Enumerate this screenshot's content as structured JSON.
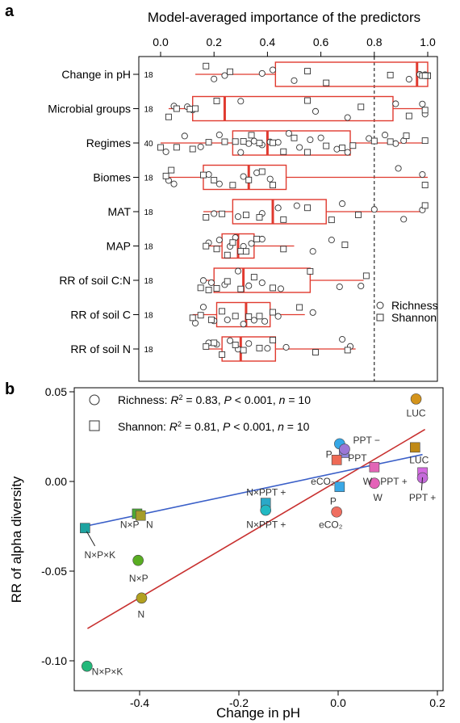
{
  "chart_data": [
    {
      "type": "box",
      "panel": "a",
      "title": "Model-averaged importance of the predictors",
      "xlim": [
        0,
        1
      ],
      "xticks": [
        0.0,
        0.2,
        0.4,
        0.6,
        0.8,
        1.0
      ],
      "xtick_labels": [
        "0.0",
        "0.2",
        "0.4",
        "0.6",
        "0.8",
        "1.0"
      ],
      "threshold": 0.8,
      "legend": [
        "Richness",
        "Shannon"
      ],
      "categories": [
        {
          "label": "Change in pH",
          "n": "18",
          "whisker": [
            0.13,
            1.0
          ],
          "q1": 0.43,
          "median": 0.96,
          "q3": 1.0,
          "circles": [
            0.2,
            0.24,
            0.38,
            0.42,
            0.5,
            0.93,
            0.97,
            0.99,
            0.99
          ],
          "squares": [
            0.17,
            0.26,
            0.55,
            0.62,
            0.86,
            0.98,
            1.0,
            1.0,
            0.99
          ]
        },
        {
          "label": "Microbial groups",
          "n": "18",
          "whisker": [
            0.03,
            1.0
          ],
          "q1": 0.12,
          "median": 0.24,
          "q3": 0.87,
          "whisker_hi_line": 0.96,
          "circles": [
            0.05,
            0.1,
            0.12,
            0.3,
            0.58,
            0.7,
            0.88,
            0.98,
            0.99
          ],
          "squares": [
            0.03,
            0.06,
            0.11,
            0.13,
            0.21,
            0.55,
            0.75,
            0.93,
            0.99
          ]
        },
        {
          "label": "Regimes",
          "n": "40",
          "whisker": [
            0.0,
            1.0
          ],
          "q1": 0.27,
          "median": 0.4,
          "q3": 0.71,
          "circles": [
            0.02,
            0.09,
            0.15,
            0.22,
            0.3,
            0.33,
            0.35,
            0.38,
            0.41,
            0.44,
            0.48,
            0.52,
            0.56,
            0.6,
            0.66,
            0.7,
            0.78,
            0.84,
            0.88,
            0.91
          ],
          "squares": [
            0.0,
            0.06,
            0.12,
            0.18,
            0.24,
            0.28,
            0.31,
            0.34,
            0.37,
            0.42,
            0.46,
            0.5,
            0.55,
            0.62,
            0.68,
            0.72,
            0.8,
            0.86,
            0.92,
            0.99
          ]
        },
        {
          "label": "Biomes",
          "n": "18",
          "whisker": [
            0.03,
            1.0
          ],
          "q1": 0.16,
          "median": 0.33,
          "q3": 0.47,
          "circles": [
            0.03,
            0.05,
            0.18,
            0.22,
            0.31,
            0.36,
            0.41,
            0.89,
            0.98
          ],
          "squares": [
            0.02,
            0.04,
            0.16,
            0.2,
            0.27,
            0.33,
            0.38,
            0.42,
            0.99
          ]
        },
        {
          "label": "MAT",
          "n": "18",
          "whisker": [
            0.16,
            0.98
          ],
          "q1": 0.27,
          "median": 0.42,
          "q3": 0.62,
          "circles": [
            0.2,
            0.29,
            0.38,
            0.44,
            0.51,
            0.68,
            0.8,
            0.91,
            0.98
          ],
          "squares": [
            0.17,
            0.23,
            0.32,
            0.37,
            0.46,
            0.55,
            0.64,
            0.74,
            0.99
          ]
        },
        {
          "label": "MAP",
          "n": "18",
          "whisker": [
            0.16,
            0.5
          ],
          "q1": 0.23,
          "median": 0.29,
          "q3": 0.35,
          "circles": [
            0.18,
            0.22,
            0.26,
            0.28,
            0.31,
            0.34,
            0.38,
            0.57,
            0.64
          ],
          "squares": [
            0.17,
            0.21,
            0.25,
            0.27,
            0.3,
            0.32,
            0.36,
            0.46,
            0.69
          ]
        },
        {
          "label": "RR of soil C:N",
          "n": "18",
          "whisker": [
            0.15,
            0.76
          ],
          "q1": 0.2,
          "median": 0.31,
          "q3": 0.56,
          "circles": [
            0.16,
            0.19,
            0.24,
            0.29,
            0.33,
            0.38,
            0.45,
            0.67,
            0.75
          ],
          "squares": [
            0.15,
            0.18,
            0.21,
            0.25,
            0.3,
            0.35,
            0.42,
            0.56,
            0.77
          ]
        },
        {
          "label": "RR of soil C",
          "n": "18",
          "whisker": [
            0.12,
            0.54
          ],
          "q1": 0.21,
          "median": 0.32,
          "q3": 0.41,
          "circles": [
            0.13,
            0.16,
            0.2,
            0.25,
            0.31,
            0.35,
            0.39,
            0.44,
            0.57
          ],
          "squares": [
            0.12,
            0.15,
            0.19,
            0.23,
            0.28,
            0.33,
            0.37,
            0.42,
            0.52
          ]
        },
        {
          "label": "RR of soil N",
          "n": "18",
          "whisker": [
            0.16,
            0.73
          ],
          "q1": 0.23,
          "median": 0.3,
          "q3": 0.43,
          "circles": [
            0.18,
            0.21,
            0.26,
            0.29,
            0.33,
            0.4,
            0.47,
            0.68,
            0.71
          ],
          "squares": [
            0.17,
            0.2,
            0.23,
            0.28,
            0.31,
            0.37,
            0.42,
            0.58,
            0.7
          ]
        }
      ]
    },
    {
      "type": "scatter",
      "panel": "b",
      "xlabel": "Change in pH",
      "ylabel": "RR of alpha diversity",
      "xlim": [
        -0.52,
        0.2
      ],
      "ylim": [
        -0.105,
        0.052
      ],
      "xticks": [
        -0.4,
        -0.2,
        0.0,
        0.2
      ],
      "xtick_labels": [
        "-0.4",
        "-0.2",
        "0.0",
        "0.2"
      ],
      "yticks": [
        -0.1,
        -0.05,
        0.0,
        0.05
      ],
      "ytick_labels": [
        "-0.10",
        "-0.05",
        "0.00",
        "0.05"
      ],
      "legend": [
        {
          "marker": "circle",
          "prefix": "Richness: ",
          "r2": "0.83",
          "p": "0.001",
          "n": "10"
        },
        {
          "marker": "square",
          "prefix": "Shannon: ",
          "r2": "0.81",
          "p": "0.001",
          "n": "10"
        }
      ],
      "fits": [
        {
          "name": "Richness",
          "color": "#c8302f",
          "x": [
            -0.505,
            0.175
          ],
          "y": [
            -0.082,
            0.029
          ]
        },
        {
          "name": "Shannon",
          "color": "#3a5fc8",
          "x": [
            -0.51,
            0.17
          ],
          "y": [
            -0.025,
            0.015
          ]
        }
      ],
      "richness": [
        {
          "label": "LUC",
          "x": 0.157,
          "y": 0.046,
          "color": "#d4941c"
        },
        {
          "label": "PPT −",
          "x": 0.003,
          "y": 0.021,
          "color": "#35a7e6"
        },
        {
          "label": "P",
          "x": 0.013,
          "y": 0.018,
          "color": "#9b77d6"
        },
        {
          "label": "PPT +",
          "x": 0.17,
          "y": 0.002,
          "color": "#c46ad9"
        },
        {
          "label": "W",
          "x": 0.073,
          "y": -0.001,
          "color": "#e462b8"
        },
        {
          "label": "eCO₂",
          "x": -0.003,
          "y": -0.017,
          "color": "#ef6e60"
        },
        {
          "label": "N×PPT +",
          "x": -0.146,
          "y": -0.016,
          "color": "#22b9c3"
        },
        {
          "label": "N×P",
          "x": -0.403,
          "y": -0.044,
          "color": "#59ad22"
        },
        {
          "label": "N",
          "x": -0.396,
          "y": -0.065,
          "color": "#b2a020"
        },
        {
          "label": "N×P×K",
          "x": -0.506,
          "y": -0.103,
          "color": "#23b87a"
        }
      ],
      "shannon": [
        {
          "label": "LUC",
          "x": 0.155,
          "y": 0.019,
          "color": "#c08a16"
        },
        {
          "label": "PPT",
          "x": 0.012,
          "y": 0.016,
          "color": "#8c86d8"
        },
        {
          "label": "P",
          "x": -0.003,
          "y": 0.012,
          "color": "#ee6a56"
        },
        {
          "label": "W",
          "x": 0.073,
          "y": 0.008,
          "color": "#e265b6"
        },
        {
          "label": "PPT +",
          "x": 0.17,
          "y": 0.005,
          "color": "#d46ae0"
        },
        {
          "label": "P",
          "x": 0.003,
          "y": -0.003,
          "color": "#3aa8e6"
        },
        {
          "label": "N×PPT +",
          "x": -0.146,
          "y": -0.012,
          "color": "#2aa8c8"
        },
        {
          "label": "N×P",
          "x": -0.405,
          "y": -0.018,
          "color": "#4daa35"
        },
        {
          "label": "N",
          "x": -0.398,
          "y": -0.019,
          "color": "#a59c2a"
        },
        {
          "label": "N×P×K",
          "x": -0.51,
          "y": -0.026,
          "color": "#1ea3a0"
        }
      ],
      "point_labels": [
        {
          "text": "LUC",
          "x": 0.157,
          "y": 0.038,
          "anchor": "middle"
        },
        {
          "text": "PPT −",
          "x": 0.03,
          "y": 0.023,
          "anchor": "start"
        },
        {
          "text": "PPT",
          "x": 0.02,
          "y": 0.013,
          "anchor": "start"
        },
        {
          "text": "P",
          "x": -0.025,
          "y": 0.015,
          "anchor": "start"
        },
        {
          "text": "LUC",
          "x": 0.163,
          "y": 0.012,
          "anchor": "middle"
        },
        {
          "text": "eCO₂",
          "x": -0.055,
          "y": 0.0,
          "anchor": "start"
        },
        {
          "text": "W",
          "x": 0.05,
          "y": 0.0,
          "anchor": "start"
        },
        {
          "text": "PPT +",
          "x": 0.085,
          "y": 0.0,
          "anchor": "start"
        },
        {
          "text": "W",
          "x": 0.08,
          "y": -0.009,
          "anchor": "middle"
        },
        {
          "text": "PPT +",
          "x": 0.17,
          "y": -0.009,
          "anchor": "middle"
        },
        {
          "text": "P",
          "x": -0.01,
          "y": -0.011,
          "anchor": "middle"
        },
        {
          "text": "eCO₂",
          "x": -0.015,
          "y": -0.024,
          "anchor": "middle"
        },
        {
          "text": "N×PPT +",
          "x": -0.145,
          "y": -0.006,
          "anchor": "middle"
        },
        {
          "text": "N×PPT +",
          "x": -0.145,
          "y": -0.024,
          "anchor": "middle"
        },
        {
          "text": "N×P",
          "x": -0.42,
          "y": -0.024,
          "anchor": "middle"
        },
        {
          "text": "N",
          "x": -0.38,
          "y": -0.024,
          "anchor": "middle"
        },
        {
          "text": "N×P×K",
          "x": -0.48,
          "y": -0.041,
          "anchor": "middle"
        },
        {
          "text": "N×P",
          "x": -0.402,
          "y": -0.054,
          "anchor": "middle"
        },
        {
          "text": "N",
          "x": -0.397,
          "y": -0.074,
          "anchor": "middle"
        },
        {
          "text": "N×P×K",
          "x": -0.465,
          "y": -0.106,
          "anchor": "middle"
        }
      ]
    }
  ]
}
